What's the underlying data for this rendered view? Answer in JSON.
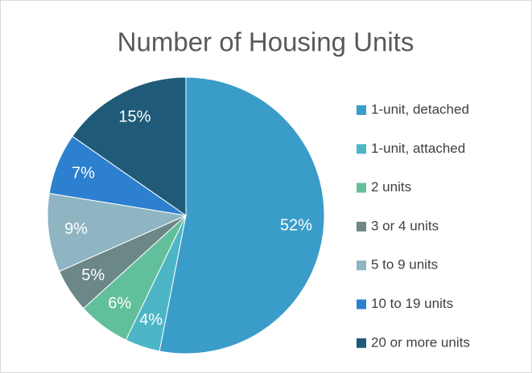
{
  "chart_data": {
    "type": "pie",
    "title": "Number of Housing Units",
    "categories": [
      "1-unit, detached",
      "1-unit, attached",
      "2 units",
      "3 or 4 units",
      "5 to 9 units",
      "10 to 19 units",
      "20 or more units"
    ],
    "values": [
      52,
      4,
      6,
      5,
      9,
      7,
      15
    ],
    "value_labels": [
      "52%",
      "4%",
      "6%",
      "5%",
      "9%",
      "7%",
      "15%"
    ],
    "colors": [
      "#3a9cc9",
      "#4db6c6",
      "#62bf9b",
      "#6b8787",
      "#8fb4c2",
      "#2d80cf",
      "#1f5b78"
    ],
    "legend": "right"
  }
}
